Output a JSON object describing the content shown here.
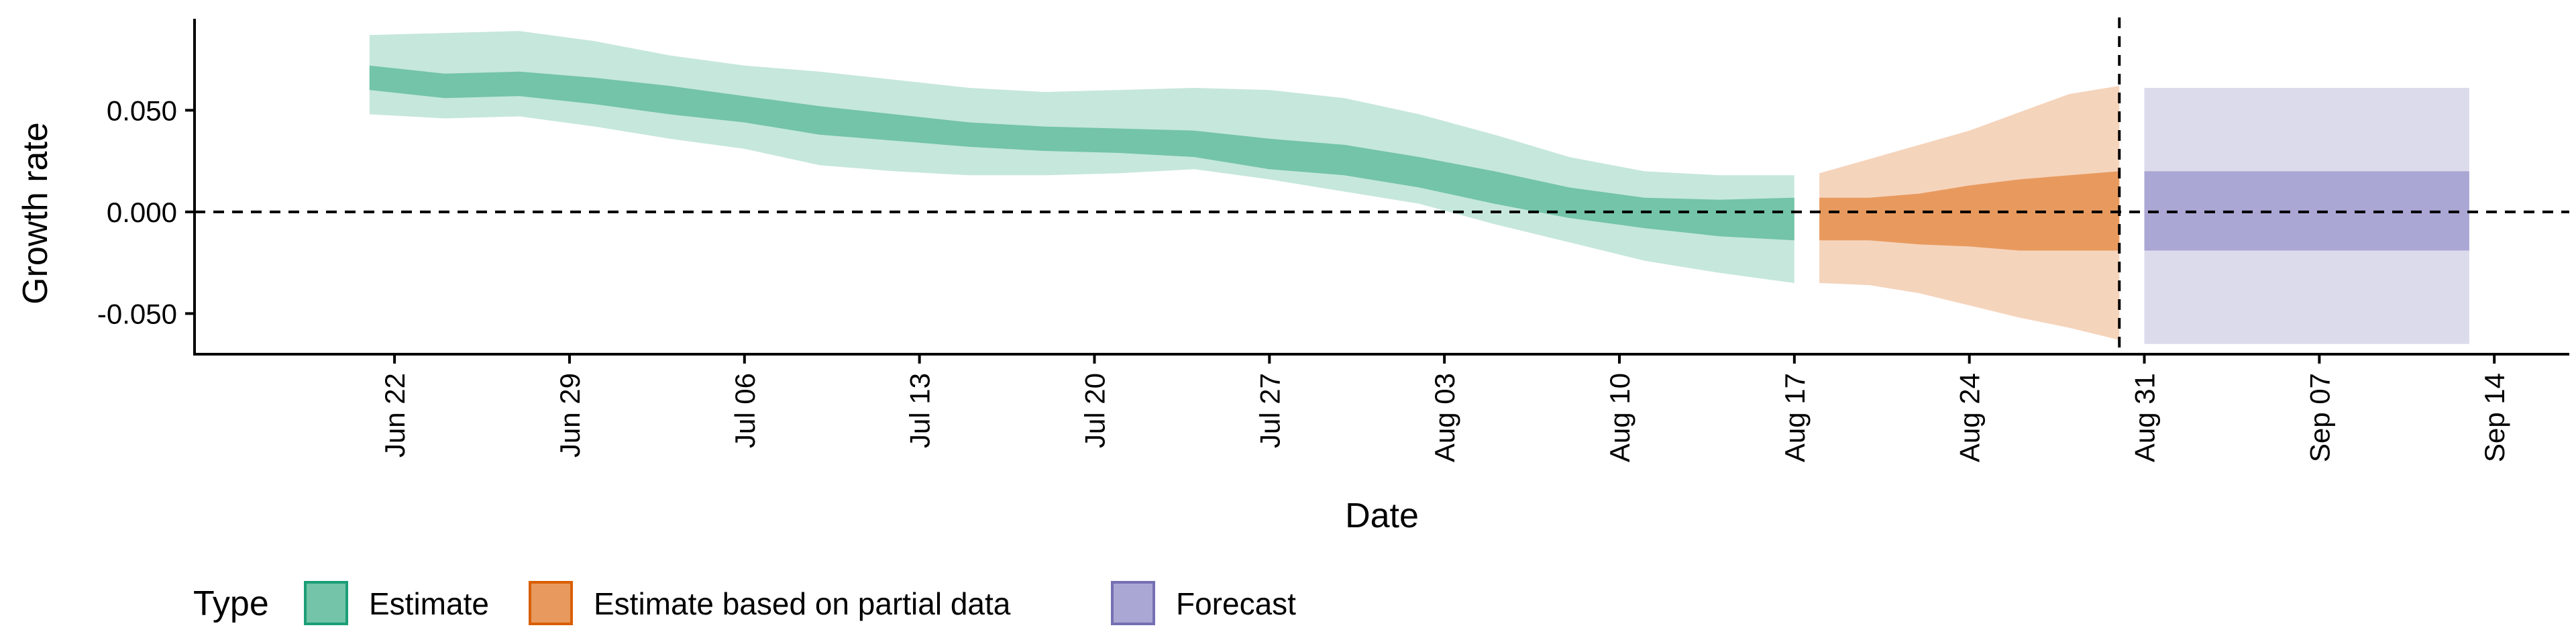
{
  "chart_data": {
    "type": "area",
    "xlabel": "Date",
    "ylabel": "Growth rate",
    "ylim": [
      -0.07,
      0.095
    ],
    "xlim": [
      "2020-06-14",
      "2020-09-17"
    ],
    "grid": false,
    "legend_placement": "bottom-left",
    "reference_lines": {
      "horizontal_y": 0,
      "vertical_x": "2020-08-30"
    },
    "y_ticks": [
      {
        "value": -0.05,
        "label": "-0.050"
      },
      {
        "value": 0,
        "label": "0.000"
      },
      {
        "value": 0.05,
        "label": "0.050"
      }
    ],
    "x_ticks": [
      {
        "date": "2020-06-22",
        "label": "Jun 22"
      },
      {
        "date": "2020-06-29",
        "label": "Jun 29"
      },
      {
        "date": "2020-07-06",
        "label": "Jul 06"
      },
      {
        "date": "2020-07-13",
        "label": "Jul 13"
      },
      {
        "date": "2020-07-20",
        "label": "Jul 20"
      },
      {
        "date": "2020-07-27",
        "label": "Jul 27"
      },
      {
        "date": "2020-08-03",
        "label": "Aug 03"
      },
      {
        "date": "2020-08-10",
        "label": "Aug 10"
      },
      {
        "date": "2020-08-17",
        "label": "Aug 17"
      },
      {
        "date": "2020-08-24",
        "label": "Aug 24"
      },
      {
        "date": "2020-08-31",
        "label": "Aug 31"
      },
      {
        "date": "2020-09-07",
        "label": "Sep 07"
      },
      {
        "date": "2020-09-14",
        "label": "Sep 14"
      }
    ],
    "legend": {
      "title": "Type",
      "entries": [
        {
          "label": "Estimate",
          "fill": "#73c4a8",
          "border": "#1b9e77"
        },
        {
          "label": "Estimate based on partial data",
          "fill": "#e89a5e",
          "border": "#d95f02"
        },
        {
          "label": "Forecast",
          "fill": "#aba7d4",
          "border": "#7570b3"
        }
      ]
    },
    "series": [
      {
        "name": "Estimate",
        "colors": {
          "outer": "#c6e7dc",
          "inner": "#73c4a8"
        },
        "points": [
          {
            "date": "2020-06-21",
            "inner": [
              0.06,
              0.072
            ],
            "outer": [
              0.048,
              0.087
            ]
          },
          {
            "date": "2020-06-24",
            "inner": [
              0.056,
              0.068
            ],
            "outer": [
              0.046,
              0.088
            ]
          },
          {
            "date": "2020-06-27",
            "inner": [
              0.057,
              0.069
            ],
            "outer": [
              0.047,
              0.089
            ]
          },
          {
            "date": "2020-06-30",
            "inner": [
              0.053,
              0.066
            ],
            "outer": [
              0.042,
              0.084
            ]
          },
          {
            "date": "2020-07-03",
            "inner": [
              0.048,
              0.062
            ],
            "outer": [
              0.036,
              0.077
            ]
          },
          {
            "date": "2020-07-06",
            "inner": [
              0.044,
              0.057
            ],
            "outer": [
              0.031,
              0.072
            ]
          },
          {
            "date": "2020-07-09",
            "inner": [
              0.038,
              0.052
            ],
            "outer": [
              0.023,
              0.069
            ]
          },
          {
            "date": "2020-07-12",
            "inner": [
              0.035,
              0.048
            ],
            "outer": [
              0.02,
              0.065
            ]
          },
          {
            "date": "2020-07-15",
            "inner": [
              0.032,
              0.044
            ],
            "outer": [
              0.018,
              0.061
            ]
          },
          {
            "date": "2020-07-18",
            "inner": [
              0.03,
              0.042
            ],
            "outer": [
              0.018,
              0.059
            ]
          },
          {
            "date": "2020-07-21",
            "inner": [
              0.029,
              0.041
            ],
            "outer": [
              0.019,
              0.06
            ]
          },
          {
            "date": "2020-07-24",
            "inner": [
              0.027,
              0.04
            ],
            "outer": [
              0.021,
              0.061
            ]
          },
          {
            "date": "2020-07-27",
            "inner": [
              0.021,
              0.036
            ],
            "outer": [
              0.016,
              0.06
            ]
          },
          {
            "date": "2020-07-30",
            "inner": [
              0.018,
              0.033
            ],
            "outer": [
              0.01,
              0.056
            ]
          },
          {
            "date": "2020-08-02",
            "inner": [
              0.012,
              0.027
            ],
            "outer": [
              0.004,
              0.048
            ]
          },
          {
            "date": "2020-08-05",
            "inner": [
              0.004,
              0.02
            ],
            "outer": [
              -0.006,
              0.038
            ]
          },
          {
            "date": "2020-08-08",
            "inner": [
              -0.003,
              0.012
            ],
            "outer": [
              -0.015,
              0.027
            ]
          },
          {
            "date": "2020-08-11",
            "inner": [
              -0.008,
              0.007
            ],
            "outer": [
              -0.024,
              0.02
            ]
          },
          {
            "date": "2020-08-14",
            "inner": [
              -0.012,
              0.006
            ],
            "outer": [
              -0.03,
              0.018
            ]
          },
          {
            "date": "2020-08-17",
            "inner": [
              -0.014,
              0.007
            ],
            "outer": [
              -0.035,
              0.018
            ]
          }
        ]
      },
      {
        "name": "Estimate based on partial data",
        "colors": {
          "outer": "#f5d4bc",
          "inner": "#e89a5e"
        },
        "points": [
          {
            "date": "2020-08-18",
            "inner": [
              -0.014,
              0.007
            ],
            "outer": [
              -0.035,
              0.019
            ]
          },
          {
            "date": "2020-08-20",
            "inner": [
              -0.014,
              0.007
            ],
            "outer": [
              -0.036,
              0.026
            ]
          },
          {
            "date": "2020-08-22",
            "inner": [
              -0.016,
              0.009
            ],
            "outer": [
              -0.04,
              0.033
            ]
          },
          {
            "date": "2020-08-24",
            "inner": [
              -0.017,
              0.013
            ],
            "outer": [
              -0.046,
              0.04
            ]
          },
          {
            "date": "2020-08-26",
            "inner": [
              -0.019,
              0.016
            ],
            "outer": [
              -0.052,
              0.049
            ]
          },
          {
            "date": "2020-08-28",
            "inner": [
              -0.019,
              0.018
            ],
            "outer": [
              -0.057,
              0.058
            ]
          },
          {
            "date": "2020-08-30",
            "inner": [
              -0.019,
              0.02
            ],
            "outer": [
              -0.063,
              0.062
            ]
          }
        ]
      },
      {
        "name": "Forecast",
        "colors": {
          "outer": "#dcdbec",
          "inner": "#aba7d4"
        },
        "points": [
          {
            "date": "2020-08-31",
            "inner": [
              -0.019,
              0.02
            ],
            "outer": [
              -0.065,
              0.061
            ]
          },
          {
            "date": "2020-09-13",
            "inner": [
              -0.019,
              0.02
            ],
            "outer": [
              -0.065,
              0.061
            ]
          }
        ]
      }
    ]
  }
}
